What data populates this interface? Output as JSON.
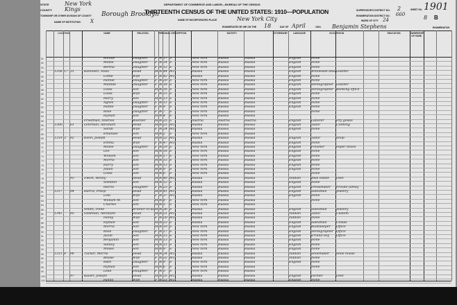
{
  "header": {
    "department": "DEPARTMENT OF COMMERCE AND LABOR—BUREAU OF THE CENSUS",
    "title": "THIRTEENTH CENSUS OF THE UNITED STATES: 1910—POPULATION",
    "state_label": "STATE",
    "state": "New York",
    "county_label": "COUNTY",
    "county": "Kings",
    "township_label": "TOWNSHIP OR OTHER DIVISION OF COUNTY",
    "township": "Borough Brooklyn",
    "institution_label": "NAME OF INSTITUTION",
    "institution": "X",
    "place_label": "NAME OF INCORPORATED PLACE",
    "place": "New York City",
    "enumerated_label": "ENUMERATED BY ME ON THE",
    "day": "18",
    "day_of_label": "DAY OF",
    "month": "April",
    "year_label": "1910,",
    "enumerator": "Benjamin Stephens",
    "enumerator_label": "ENUMERATOR.",
    "supervisor_label": "SUPERVISOR'S DISTRICT NO.",
    "supervisor_district": "2",
    "enumeration_label": "ENUMERATION DISTRICT NO.",
    "enumeration_district": "660",
    "ward_label": "WARD OF CITY",
    "ward": "24",
    "sheet_label": "SHEET NO.",
    "sheet": "1901",
    "sheet_letter": "8",
    "sheet_side": "B"
  },
  "columns": [
    "LOCATION.",
    "NAME",
    "RELATION.",
    "PERSONAL DESCRIPTION.",
    "NATIVITY.",
    "CITIZENSHIP.",
    "LANGUAGE",
    "OCCUPATION.",
    "EDUCATION.",
    "OWNERSHIP OF HOME."
  ],
  "rows": [
    [
      "",
      "",
      "",
      "Minnie",
      "Daughter",
      "F",
      "W",
      "17",
      "S",
      "New York",
      "Russia",
      "Russia",
      "English",
      "None",
      ""
    ],
    [
      "",
      "",
      "",
      "Mollie",
      "Daughter",
      "F",
      "W",
      "14",
      "S",
      "New York",
      "Russia",
      "Russia",
      "English",
      "None",
      ""
    ],
    [
      "",
      "",
      "",
      "Bertha",
      "Daughter",
      "F",
      "W",
      "12",
      "S",
      "New York",
      "Russia",
      "Russia",
      "English",
      "None",
      ""
    ],
    [
      "1358",
      "17",
      "31",
      "Kanowitz, Elias",
      "Head",
      "M",
      "W",
      "44",
      "M1",
      "Russia",
      "Russia",
      "Russia",
      "English",
      "Wholesale dealer",
      "Leather"
    ],
    [
      "",
      "",
      "",
      "Lottie",
      "Wife",
      "F",
      "W",
      "42",
      "M1",
      "Russia",
      "Russia",
      "Russia",
      "English",
      "None",
      ""
    ],
    [
      "",
      "",
      "",
      "Fannie",
      "Daughter",
      "F",
      "W",
      "20",
      "S",
      "New York",
      "Russia",
      "Russia",
      "English",
      "None",
      ""
    ],
    [
      "",
      "",
      "",
      "Matilda",
      "Daughter",
      "F",
      "W",
      "18",
      "S",
      "New York",
      "Russia",
      "Russia",
      "English",
      "Stenographer",
      "Leather"
    ],
    [
      "",
      "",
      "",
      "Louis",
      "Son",
      "M",
      "W",
      "16",
      "S",
      "New York",
      "Russia",
      "Russia",
      "English",
      "Stenographer",
      "Banking office"
    ],
    [
      "",
      "",
      "",
      "Louis",
      "Wife",
      "F",
      "W",
      "15",
      "S",
      "New York",
      "Russia",
      "Russia",
      "English",
      "None",
      ""
    ],
    [
      "",
      "",
      "",
      "Harry",
      "Son",
      "M",
      "W",
      "13",
      "S",
      "New York",
      "Russia",
      "Russia",
      "English",
      "None",
      ""
    ],
    [
      "",
      "",
      "",
      "Agnes",
      "Daughter",
      "F",
      "W",
      "11",
      "S",
      "New York",
      "Russia",
      "Russia",
      "English",
      "None",
      ""
    ],
    [
      "",
      "",
      "",
      "Hattie",
      "Daughter",
      "F",
      "W",
      "9",
      "S",
      "New York",
      "Russia",
      "Russia",
      "English",
      "None",
      ""
    ],
    [
      "",
      "",
      "",
      "Rose",
      "Daughter",
      "F",
      "W",
      "7",
      "S",
      "New York",
      "Russia",
      "Russia",
      "",
      "None",
      ""
    ],
    [
      "",
      "",
      "",
      "Hyman",
      "Son",
      "M",
      "W",
      "4",
      "S",
      "New York",
      "Russia",
      "Russia",
      "",
      "",
      ""
    ],
    [
      "",
      "",
      "",
      "Friedman, Andries",
      "Boarder",
      "M",
      "W",
      "25",
      "S",
      "Austria",
      "Austria",
      "Austria",
      "English",
      "Laborer",
      "Dry goods"
    ],
    [
      "1360",
      "",
      "61",
      "Lehrman, Abraham",
      "Head",
      "M",
      "W",
      "25",
      "M1",
      "Russia",
      "Russia",
      "Russia",
      "English",
      "Tailor",
      "Clothing"
    ],
    [
      "",
      "",
      "",
      "Sarah",
      "Wife",
      "F",
      "W",
      "24",
      "M1",
      "Russia",
      "Russia",
      "Russia",
      "English",
      "None",
      ""
    ],
    [
      "",
      "",
      "",
      "Emanuel",
      "Son",
      "M",
      "W",
      "2",
      "S",
      "New York",
      "Russia",
      "Russia",
      "",
      "",
      ""
    ],
    [
      "1319",
      "3",
      "92",
      "Klein, Joseph",
      "Head",
      "M",
      "W",
      "52",
      "M1",
      "Russia",
      "Russia",
      "Russia",
      "English",
      "Tailor",
      "Shop"
    ],
    [
      "",
      "",
      "",
      "Emma",
      "Wife",
      "F",
      "W",
      "47",
      "M1",
      "Russia",
      "Russia",
      "Russia",
      "English",
      "None",
      ""
    ],
    [
      "",
      "",
      "",
      "Mollie",
      "Daughter",
      "F",
      "W",
      "19",
      "S",
      "New York",
      "Russia",
      "Russia",
      "English",
      "Finisher",
      "Paper boxes"
    ],
    [
      "",
      "",
      "",
      "Leo",
      "Son",
      "M",
      "W",
      "18",
      "S",
      "New York",
      "Russia",
      "Russia",
      "English",
      "None",
      ""
    ],
    [
      "",
      "",
      "",
      "William",
      "Son",
      "M",
      "W",
      "17",
      "S",
      "New York",
      "Russia",
      "Russia",
      "English",
      "None",
      ""
    ],
    [
      "",
      "",
      "",
      "Morris",
      "Son",
      "M",
      "W",
      "15",
      "S",
      "New York",
      "Russia",
      "Russia",
      "English",
      "None",
      ""
    ],
    [
      "",
      "",
      "",
      "Harry",
      "Son",
      "M",
      "W",
      "13",
      "S",
      "New York",
      "Russia",
      "Russia",
      "English",
      "None",
      ""
    ],
    [
      "",
      "",
      "",
      "Julian",
      "Son",
      "M",
      "W",
      "9",
      "S",
      "New York",
      "Russia",
      "Russia",
      "English",
      "None",
      ""
    ],
    [
      "",
      "",
      "",
      "Louis",
      "Son",
      "M",
      "W",
      "6",
      "S",
      "New York",
      "Russia",
      "Russia",
      "",
      "None",
      ""
    ],
    [
      "",
      "",
      "93",
      "Zwick, Benny",
      "Head",
      "M",
      "W",
      "40",
      "M1",
      "Russia",
      "Russia",
      "Russia",
      "Yiddish",
      "Real estate",
      "Own"
    ],
    [
      "",
      "",
      "",
      "Sheldon",
      "Son",
      "M",
      "W",
      "12",
      "S",
      "Russia",
      "Russia",
      "Russia",
      "English",
      "None",
      ""
    ],
    [
      "",
      "",
      "",
      "Harris",
      "Daughter",
      "F",
      "W",
      "23",
      "S",
      "Russia",
      "Russia",
      "Russia",
      "English",
      "Dressmaker",
      "Private family"
    ],
    [
      "1317",
      "",
      "94",
      "Harris, Philip",
      "Head",
      "M",
      "W",
      "41",
      "M1",
      "Russia",
      "Russia",
      "Russia",
      "English",
      "Salesman",
      "Jewelry"
    ],
    [
      "",
      "",
      "",
      "Lola",
      "Wife",
      "F",
      "W",
      "37",
      "M1",
      "Russia",
      "Russia",
      "Russia",
      "English",
      "None",
      ""
    ],
    [
      "",
      "",
      "",
      "William M.",
      "Son",
      "M",
      "W",
      "8",
      "S",
      "New York",
      "Russia",
      "Russia",
      "",
      "None",
      ""
    ],
    [
      "",
      "",
      "",
      "Charles",
      "Son",
      "M",
      "W",
      "5",
      "S",
      "New York",
      "Russia",
      "Russia",
      "",
      "",
      ""
    ],
    [
      "",
      "",
      "",
      "Smith, Irene",
      "Brother-in-law",
      "M",
      "W",
      "36",
      "S",
      "Russia",
      "Russia",
      "Russia",
      "English",
      "Salesman",
      "Jewelry"
    ],
    [
      "1341",
      "",
      "95",
      "Goldman, Abraham",
      "Head",
      "M",
      "W",
      "51",
      "M1",
      "Russia",
      "Russia",
      "Russia",
      "Yiddish",
      "Tailor",
      "Custom"
    ],
    [
      "",
      "",
      "",
      "Fanny",
      "Wife",
      "F",
      "W",
      "50",
      "M1",
      "Russia",
      "Russia",
      "Russia",
      "Yiddish",
      "None",
      ""
    ],
    [
      "",
      "",
      "",
      "Hyman",
      "Son",
      "M",
      "W",
      "23",
      "S",
      "Russia",
      "Russia",
      "Russia",
      "English",
      "Salesman",
      "Cloaks"
    ],
    [
      "",
      "",
      "",
      "Morris",
      "Son",
      "M",
      "W",
      "19",
      "S",
      "New York",
      "Russia",
      "Russia",
      "English",
      "Bookkeeper",
      "Office"
    ],
    [
      "",
      "",
      "",
      "Rose",
      "Daughter",
      "F",
      "W",
      "17",
      "S",
      "New York",
      "Russia",
      "Russia",
      "English",
      "Stenographer",
      "Office"
    ],
    [
      "",
      "",
      "",
      "Jacob",
      "Son",
      "M",
      "W",
      "15",
      "S",
      "New York",
      "Russia",
      "Russia",
      "English",
      "Errand boy",
      "Office"
    ],
    [
      "",
      "",
      "",
      "Benjamin",
      "Son",
      "M",
      "W",
      "13",
      "S",
      "New York",
      "Russia",
      "Russia",
      "English",
      "None",
      ""
    ],
    [
      "",
      "",
      "",
      "Sidney",
      "Son",
      "M",
      "W",
      "11",
      "S",
      "New York",
      "Russia",
      "Russia",
      "English",
      "None",
      ""
    ],
    [
      "",
      "",
      "",
      "Moses",
      "Son",
      "M",
      "W",
      "9",
      "S",
      "New York",
      "Russia",
      "Russia",
      "English",
      "None",
      ""
    ],
    [
      "1311",
      "8",
      "96",
      "Tucker, Morris",
      "Head",
      "M",
      "W",
      "34",
      "M1",
      "Russia",
      "Russia",
      "Russia",
      "Yiddish",
      "Shoemaker",
      "Shoe house"
    ],
    [
      "",
      "",
      "",
      "Bessie",
      "Wife",
      "F",
      "W",
      "32",
      "M1",
      "Russia",
      "Russia",
      "Russia",
      "Yiddish",
      "None",
      ""
    ],
    [
      "",
      "",
      "",
      "Ruth",
      "Daughter",
      "F",
      "W",
      "9",
      "S",
      "New York",
      "Russia",
      "Russia",
      "English",
      "None",
      ""
    ],
    [
      "",
      "",
      "",
      "Hyman",
      "Son",
      "M",
      "W",
      "6",
      "S",
      "New York",
      "Russia",
      "Russia",
      "",
      "None",
      ""
    ],
    [
      "",
      "",
      "",
      "Leah",
      "Daughter",
      "F",
      "W",
      "3",
      "S",
      "New York",
      "Russia",
      "Russia",
      "",
      "",
      ""
    ],
    [
      "",
      "",
      "97",
      "Kaiser, Joseph",
      "Head",
      "M",
      "W",
      "35",
      "M1",
      "Russia",
      "Russia",
      "Russia",
      "English",
      "Farmer",
      "Own"
    ],
    [
      "",
      "",
      "",
      "Fanny",
      "Wife",
      "F",
      "W",
      "33",
      "M1",
      "Russia",
      "Russia",
      "Russia",
      "English",
      "None",
      ""
    ]
  ]
}
